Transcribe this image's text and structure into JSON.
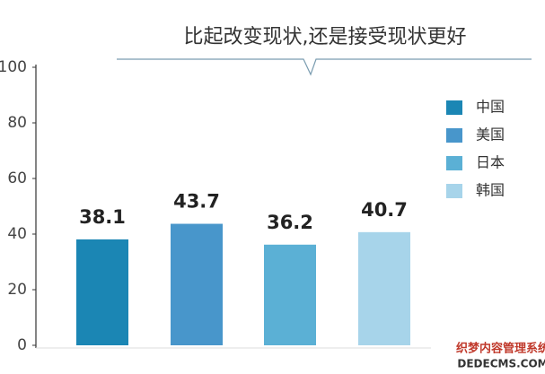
{
  "chart_data": {
    "type": "bar",
    "title": "比起改变现状,还是接受现状更好",
    "categories": [
      "中国",
      "美国",
      "日本",
      "韩国"
    ],
    "values": [
      38.1,
      43.7,
      36.2,
      40.7
    ],
    "colors": [
      "#1b86b4",
      "#4896cb",
      "#5bb0d5",
      "#a7d4ea"
    ],
    "ylim": [
      0,
      100
    ],
    "yticks": [
      0,
      20,
      40,
      60,
      80,
      100
    ],
    "grid": false,
    "legend": "right"
  },
  "watermark": {
    "line1": "织梦内容管理系统",
    "line2": "DEDECMS.COM"
  }
}
